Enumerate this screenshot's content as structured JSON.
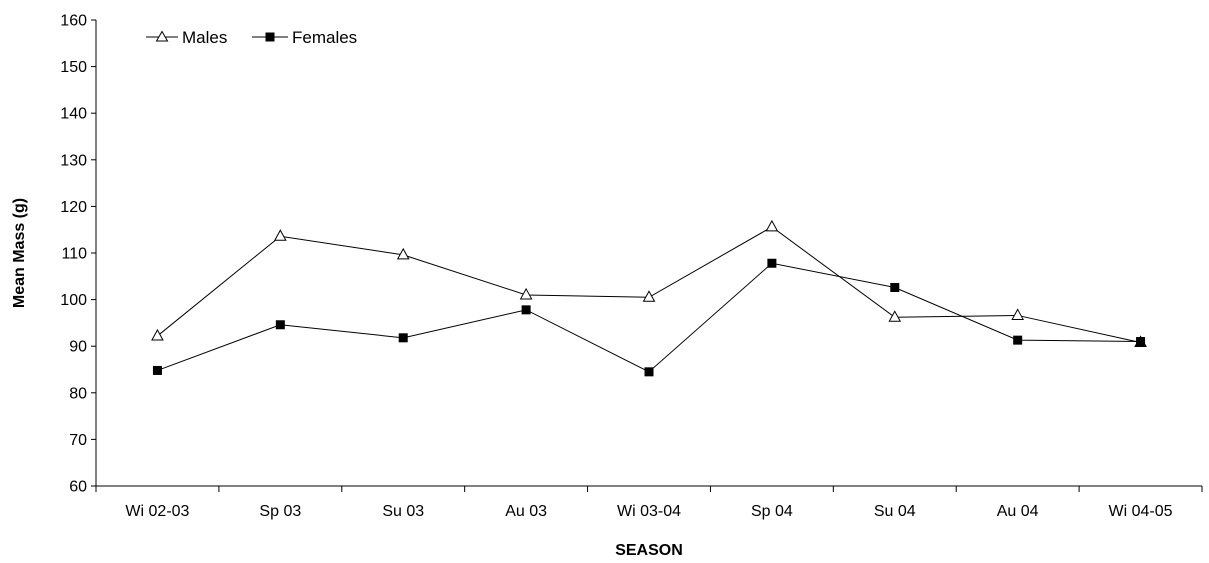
{
  "chart_data": {
    "type": "line",
    "categories": [
      "Wi 02-03",
      "Sp 03",
      "Su 03",
      "Au 03",
      "Wi 03-04",
      "Sp 04",
      "Su 04",
      "Au 04",
      "Wi 04-05"
    ],
    "series": [
      {
        "name": "Males",
        "marker": "open-triangle",
        "color": "#000000",
        "values": [
          92.2,
          113.6,
          109.6,
          101.0,
          100.5,
          115.6,
          96.2,
          96.6,
          90.8
        ]
      },
      {
        "name": "Females",
        "marker": "filled-square",
        "color": "#000000",
        "values": [
          84.8,
          94.6,
          91.8,
          97.8,
          84.5,
          107.8,
          102.6,
          91.3,
          91.0
        ]
      }
    ],
    "xlabel": "SEASON",
    "ylabel": "Mean Mass (g)",
    "ylim": [
      60,
      160
    ],
    "yticks": [
      60,
      70,
      80,
      90,
      100,
      110,
      120,
      130,
      140,
      150,
      160
    ],
    "grid": false,
    "legend_position": "top-left"
  }
}
